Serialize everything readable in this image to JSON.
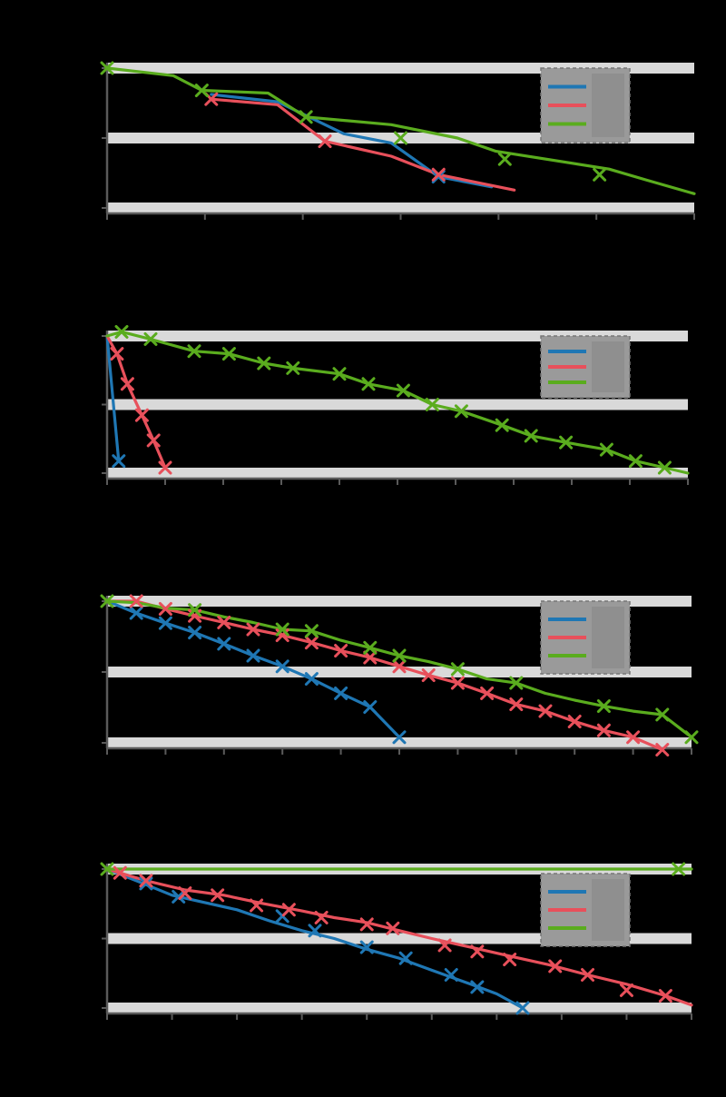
{
  "chart_data": [
    {
      "type": "line",
      "title": "",
      "xlabel": "",
      "ylabel": "",
      "yscale": "log",
      "grid": true,
      "legend": "top-right",
      "xlim": [
        0,
        31
      ],
      "ylim": [
        0.01,
        1
      ],
      "colors": [
        "#1f77b4",
        "#e8505b",
        "#5aac1e"
      ],
      "series": [
        {
          "name": "",
          "x": [
            5.5,
            9.0,
            12.5,
            15.0,
            17.5,
            20.3
          ],
          "y": [
            0.42,
            0.33,
            0.115,
            0.085,
            0.028,
            0.02
          ]
        },
        {
          "name": "",
          "x": [
            5.5,
            9.0,
            11.5,
            15.0,
            17.5,
            21.5
          ],
          "y": [
            0.36,
            0.3,
            0.09,
            0.055,
            0.03,
            0.018
          ]
        },
        {
          "name": "",
          "x": [
            0,
            3.5,
            5.0,
            8.5,
            10.5,
            15.0,
            18.5,
            20.5,
            26.5,
            28.5,
            31.0
          ],
          "y": [
            1.0,
            0.78,
            0.48,
            0.44,
            0.2,
            0.155,
            0.1,
            0.065,
            0.036,
            0.025,
            0.016
          ]
        }
      ],
      "markers": [
        {
          "series": 0,
          "x": [
            17.5
          ],
          "y": [
            0.028
          ]
        },
        {
          "series": 1,
          "x": [
            5.5,
            11.5,
            17.5
          ],
          "y": [
            0.36,
            0.09,
            0.03
          ]
        },
        {
          "series": 2,
          "x": [
            0,
            5.0,
            10.5,
            15.5,
            21.0,
            26.0
          ],
          "y": [
            1.0,
            0.48,
            0.2,
            0.1,
            0.05,
            0.03
          ]
        }
      ]
    },
    {
      "type": "line",
      "title": "",
      "xlabel": "",
      "ylabel": "",
      "yscale": "log",
      "grid": true,
      "legend": "top-right",
      "xlim": [
        0,
        100
      ],
      "ylim": [
        0.01,
        1
      ],
      "colors": [
        "#1f77b4",
        "#e8505b",
        "#5aac1e"
      ],
      "series": [
        {
          "name": "",
          "x": [
            0,
            2
          ],
          "y": [
            1.0,
            0.015
          ]
        },
        {
          "name": "",
          "x": [
            0,
            1.7,
            3.5,
            6.0,
            8.0,
            10.0
          ],
          "y": [
            1.0,
            0.55,
            0.2,
            0.07,
            0.03,
            0.012
          ]
        },
        {
          "name": "",
          "x": [
            0,
            2.5,
            7.5,
            15,
            21,
            27,
            32,
            40,
            45,
            51,
            56,
            61,
            68,
            73,
            79,
            86,
            91,
            96,
            100
          ],
          "y": [
            1.0,
            1.15,
            0.9,
            0.6,
            0.55,
            0.4,
            0.34,
            0.28,
            0.2,
            0.16,
            0.1,
            0.08,
            0.05,
            0.035,
            0.028,
            0.022,
            0.015,
            0.012,
            0.01
          ]
        }
      ],
      "markers": [
        {
          "series": 0,
          "x": [
            2
          ],
          "y": [
            0.015
          ]
        },
        {
          "series": 1,
          "x": [
            1.7,
            3.5,
            6.0,
            8.0,
            10.0
          ],
          "y": [
            0.55,
            0.2,
            0.07,
            0.03,
            0.012
          ]
        },
        {
          "series": 2,
          "x": [
            2.5,
            7.5,
            15,
            21,
            27,
            32,
            40,
            45,
            51,
            56,
            61,
            68,
            73,
            79,
            86,
            91,
            96
          ],
          "y": [
            1.15,
            0.9,
            0.6,
            0.55,
            0.4,
            0.34,
            0.28,
            0.2,
            0.16,
            0.1,
            0.08,
            0.05,
            0.035,
            0.028,
            0.022,
            0.015,
            0.012
          ]
        }
      ]
    },
    {
      "type": "line",
      "title": "",
      "xlabel": "",
      "ylabel": "",
      "yscale": "log",
      "grid": true,
      "legend": "top-right",
      "xlim": [
        0,
        20
      ],
      "ylim": [
        0.01,
        1
      ],
      "colors": [
        "#1f77b4",
        "#e8505b",
        "#5aac1e"
      ],
      "series": [
        {
          "name": "",
          "x": [
            0,
            1,
            2,
            3,
            4,
            5,
            6,
            7,
            8,
            9,
            10
          ],
          "y": [
            1.0,
            0.68,
            0.49,
            0.36,
            0.25,
            0.17,
            0.12,
            0.08,
            0.05,
            0.032,
            0.012
          ]
        },
        {
          "name": "",
          "x": [
            0,
            1,
            2,
            3,
            4,
            5,
            6,
            7,
            8,
            9,
            10,
            11,
            12,
            13,
            14,
            15,
            16,
            17,
            18,
            19
          ],
          "y": [
            1.0,
            1.0,
            0.78,
            0.62,
            0.5,
            0.4,
            0.33,
            0.26,
            0.2,
            0.16,
            0.12,
            0.09,
            0.07,
            0.05,
            0.035,
            0.028,
            0.02,
            0.015,
            0.012,
            0.008
          ]
        },
        {
          "name": "",
          "x": [
            0,
            1,
            2,
            3,
            4,
            5,
            6,
            7,
            8,
            9,
            10,
            11,
            12,
            13,
            14,
            15,
            16,
            17,
            18,
            19,
            20
          ],
          "y": [
            1.0,
            0.95,
            0.8,
            0.75,
            0.6,
            0.5,
            0.4,
            0.38,
            0.28,
            0.22,
            0.17,
            0.14,
            0.11,
            0.08,
            0.07,
            0.05,
            0.04,
            0.033,
            0.028,
            0.025,
            0.012
          ]
        }
      ],
      "markers": [
        {
          "series": 0,
          "x": [
            1,
            2,
            3,
            4,
            5,
            6,
            7,
            8,
            9,
            10
          ],
          "y": [
            0.68,
            0.49,
            0.36,
            0.25,
            0.17,
            0.12,
            0.08,
            0.05,
            0.032,
            0.012
          ]
        },
        {
          "series": 1,
          "x": [
            1,
            2,
            3,
            4,
            5,
            6,
            7,
            8,
            9,
            10,
            11,
            12,
            13,
            14,
            15,
            16,
            17,
            18,
            19
          ],
          "y": [
            1.0,
            0.78,
            0.62,
            0.5,
            0.4,
            0.33,
            0.26,
            0.2,
            0.16,
            0.12,
            0.09,
            0.07,
            0.05,
            0.035,
            0.028,
            0.02,
            0.015,
            0.012,
            0.008
          ]
        },
        {
          "series": 2,
          "x": [
            0,
            3,
            6,
            7,
            9,
            10,
            12,
            14,
            17,
            19,
            20
          ],
          "y": [
            1.0,
            0.75,
            0.4,
            0.38,
            0.22,
            0.17,
            0.11,
            0.07,
            0.033,
            0.025,
            0.012
          ]
        }
      ]
    },
    {
      "type": "line",
      "title": "",
      "xlabel": "",
      "ylabel": "",
      "yscale": "log",
      "grid": true,
      "legend": "top-right",
      "xlim": [
        0,
        900
      ],
      "ylim": [
        0.01,
        1
      ],
      "colors": [
        "#1f77b4",
        "#e8505b",
        "#5aac1e"
      ],
      "series": [
        {
          "name": "",
          "x": [
            0,
            50,
            100,
            150,
            200,
            250,
            300,
            350,
            400,
            450,
            500,
            560,
            600,
            640
          ],
          "y": [
            1.0,
            0.65,
            0.42,
            0.33,
            0.26,
            0.18,
            0.13,
            0.1,
            0.07,
            0.052,
            0.035,
            0.022,
            0.016,
            0.01
          ]
        },
        {
          "name": "",
          "x": [
            0,
            60,
            120,
            180,
            240,
            300,
            350,
            400,
            450,
            500,
            560,
            620,
            680,
            740,
            800,
            860,
            900
          ],
          "y": [
            1.0,
            0.68,
            0.5,
            0.42,
            0.32,
            0.25,
            0.2,
            0.17,
            0.13,
            0.1,
            0.075,
            0.056,
            0.042,
            0.03,
            0.022,
            0.015,
            0.011
          ]
        },
        {
          "name": "",
          "x": [
            0,
            900
          ],
          "y": [
            1.0,
            1.0
          ]
        }
      ],
      "markers": [
        {
          "series": 0,
          "x": [
            60,
            110,
            270,
            320,
            400,
            460,
            530,
            570,
            640
          ],
          "y": [
            0.62,
            0.4,
            0.21,
            0.13,
            0.075,
            0.052,
            0.03,
            0.02,
            0.01
          ]
        },
        {
          "series": 1,
          "x": [
            20,
            60,
            120,
            170,
            230,
            280,
            330,
            400,
            440,
            520,
            570,
            620,
            690,
            740,
            800,
            860
          ],
          "y": [
            0.88,
            0.68,
            0.45,
            0.42,
            0.3,
            0.26,
            0.2,
            0.16,
            0.14,
            0.08,
            0.065,
            0.05,
            0.04,
            0.03,
            0.018,
            0.015
          ]
        },
        {
          "series": 2,
          "x": [
            0,
            880
          ],
          "y": [
            1.0,
            1.0
          ]
        }
      ]
    }
  ]
}
